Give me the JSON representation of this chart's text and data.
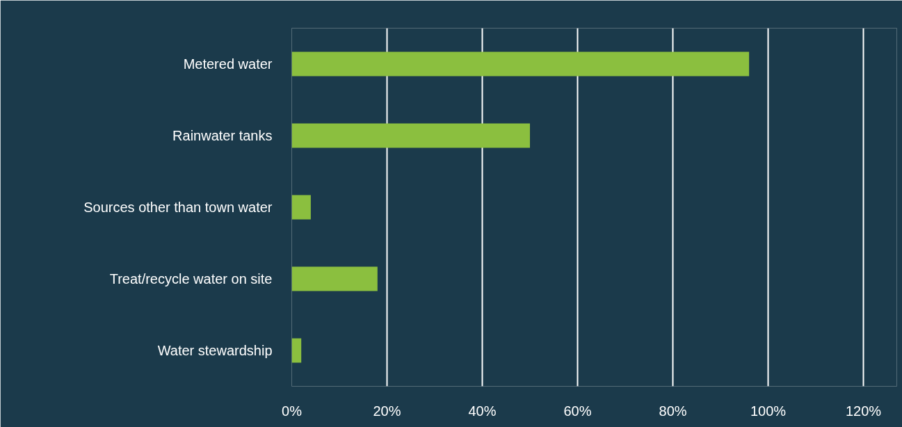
{
  "chart_data": {
    "type": "bar",
    "orientation": "horizontal",
    "categories": [
      "Metered water",
      "Rainwater tanks",
      "Sources other than town water",
      "Treat/recycle water on site",
      "Water stewardship"
    ],
    "values": [
      96,
      50,
      4,
      18,
      2
    ],
    "color": "#8bbf3f",
    "xlim": [
      0,
      127
    ],
    "xticks": [
      {
        "value": 0,
        "label": "0%"
      },
      {
        "value": 20,
        "label": "20%"
      },
      {
        "value": 40,
        "label": "40%"
      },
      {
        "value": 60,
        "label": "60%"
      },
      {
        "value": 80,
        "label": "80%"
      },
      {
        "value": 100,
        "label": "100%"
      },
      {
        "value": 120,
        "label": "120%"
      }
    ],
    "grid": "x"
  }
}
